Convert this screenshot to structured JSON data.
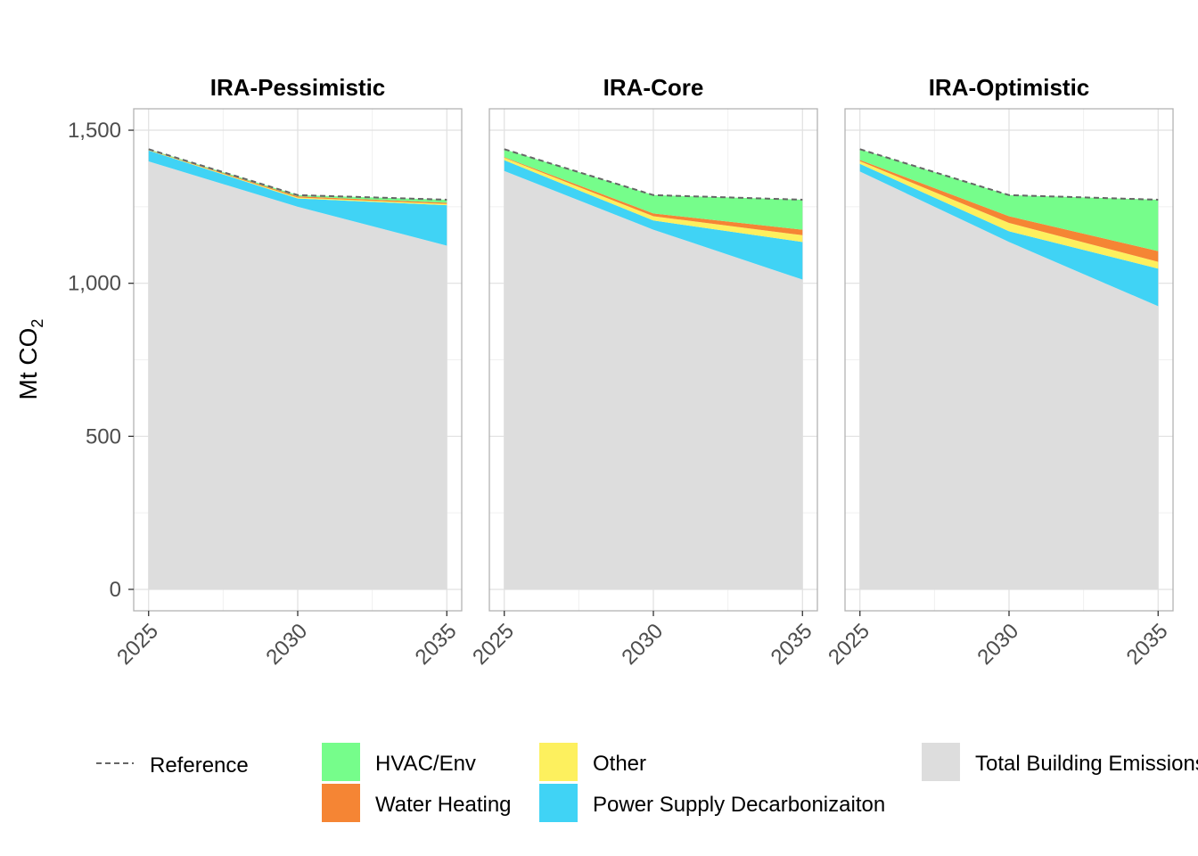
{
  "chart_data": {
    "type": "area",
    "ylabel": "Mt CO",
    "ylabel_subscript": "2",
    "x": [
      2025,
      2030,
      2035
    ],
    "x_ticks": [
      "2025",
      "2030",
      "2035"
    ],
    "y_ticks": [
      "0",
      "500",
      "1,000",
      "1,500"
    ],
    "y_tick_values": [
      0,
      500,
      1000,
      1500
    ],
    "ylim": [
      -70,
      1570
    ],
    "xlim": [
      2024.5,
      2035.5
    ],
    "grid": true,
    "legend_position": "bottom",
    "colors": {
      "Total Building Emissions": "#dddddd",
      "Power Supply Decarbonizaiton": "#40d3f5",
      "Other": "#fdf05e",
      "Water Heating": "#f58534",
      "HVAC/Env": "#76fd8b",
      "Reference": "#666666"
    },
    "legend": [
      {
        "label": "Reference",
        "kind": "dashed-line"
      },
      {
        "label": "HVAC/Env",
        "kind": "fill"
      },
      {
        "label": "Water Heating",
        "kind": "fill"
      },
      {
        "label": "Other",
        "kind": "fill"
      },
      {
        "label": "Power Supply Decarbonizaiton",
        "kind": "fill"
      },
      {
        "label": "Total Building Emissions",
        "kind": "fill"
      }
    ],
    "panels": [
      {
        "title": "IRA-Pessimistic",
        "reference": [
          1438,
          1288,
          1273
        ],
        "series": [
          {
            "name": "Total Building Emissions",
            "values": [
              1398,
              1250,
              1123
            ]
          },
          {
            "name": "Power Supply Decarbonizaiton",
            "values": [
              36,
              27,
              132
            ]
          },
          {
            "name": "Other",
            "values": [
              1,
              3,
              4
            ]
          },
          {
            "name": "Water Heating",
            "values": [
              1,
              4,
              4
            ]
          },
          {
            "name": "HVAC/Env",
            "values": [
              2,
              4,
              10
            ]
          }
        ]
      },
      {
        "title": "IRA-Core",
        "reference": [
          1438,
          1288,
          1273
        ],
        "series": [
          {
            "name": "Total Building Emissions",
            "values": [
              1367,
              1175,
              1012
            ]
          },
          {
            "name": "Power Supply Decarbonizaiton",
            "values": [
              35,
              30,
              123
            ]
          },
          {
            "name": "Other",
            "values": [
              8,
              14,
              22
            ]
          },
          {
            "name": "Water Heating",
            "values": [
              2,
              9,
              18
            ]
          },
          {
            "name": "HVAC/Env",
            "values": [
              26,
              60,
              98
            ]
          }
        ]
      },
      {
        "title": "IRA-Optimistic",
        "reference": [
          1438,
          1288,
          1273
        ],
        "series": [
          {
            "name": "Total Building Emissions",
            "values": [
              1365,
              1135,
              925
            ]
          },
          {
            "name": "Power Supply Decarbonizaiton",
            "values": [
              25,
              35,
              123
            ]
          },
          {
            "name": "Other",
            "values": [
              9,
              27,
              22
            ]
          },
          {
            "name": "Water Heating",
            "values": [
              4,
              22,
              35
            ]
          },
          {
            "name": "HVAC/Env",
            "values": [
              35,
              69,
              168
            ]
          }
        ]
      }
    ]
  }
}
